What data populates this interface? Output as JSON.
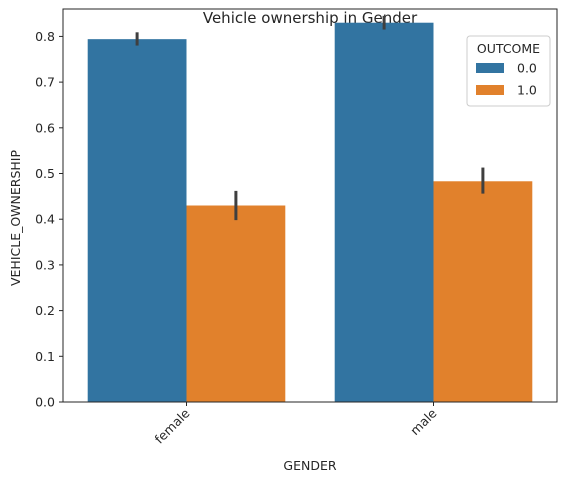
{
  "chart_data": {
    "type": "bar",
    "title": "Vehicle ownership in Gender",
    "xlabel": "GENDER",
    "ylabel": "VEHICLE_OWNERSHIP",
    "categories": [
      "female",
      "male"
    ],
    "ylim": [
      0,
      0.86
    ],
    "yticks": [
      "0.0",
      "0.1",
      "0.2",
      "0.3",
      "0.4",
      "0.5",
      "0.6",
      "0.7",
      "0.8"
    ],
    "legend": {
      "title": "OUTCOME",
      "placement": "top-right"
    },
    "series": [
      {
        "name": "0.0",
        "color": "#3274a1",
        "values": [
          0.794,
          0.83
        ],
        "ci": [
          [
            0.78,
            0.809
          ],
          [
            0.815,
            0.845
          ]
        ]
      },
      {
        "name": "1.0",
        "color": "#e1812c",
        "values": [
          0.43,
          0.483
        ],
        "ci": [
          [
            0.398,
            0.462
          ],
          [
            0.456,
            0.513
          ]
        ]
      }
    ],
    "grid": false
  }
}
